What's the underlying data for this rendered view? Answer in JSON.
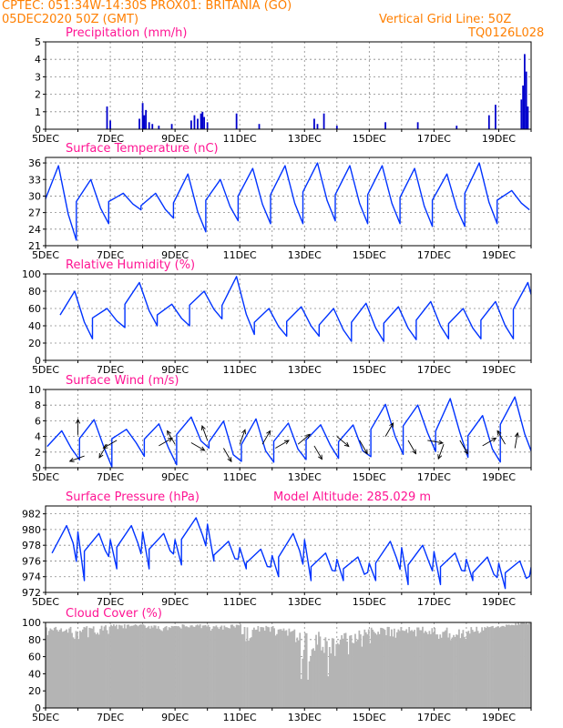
{
  "header": {
    "line1": "CPTEC:   051:34W-14:30S   PROX01: BRITANIA (GO)",
    "line2_left": "05DEC2020 50Z (GMT)",
    "line2_right": "Vertical Grid Line: 50Z",
    "line3_right": "TQ0126L028",
    "color": "#ff7f00"
  },
  "colors": {
    "title": "#ff1493",
    "line": "#0033ff",
    "bar": "#0000cc",
    "cloud": "#b4b4b4",
    "grid": "#888888",
    "axis": "#000000"
  },
  "x_ticks": [
    "5DEC",
    "7DEC",
    "9DEC",
    "11DEC",
    "13DEC",
    "15DEC",
    "17DEC",
    "19DEC"
  ],
  "chart_data": [
    {
      "type": "bar",
      "title": "Precipitation (mm/h)",
      "xlim_days": [
        5,
        20
      ],
      "ylim": [
        0,
        5
      ],
      "yticks": [
        0,
        1,
        2,
        3,
        4,
        5
      ],
      "grid": true,
      "x": [
        6.9,
        7.0,
        7.9,
        8.0,
        8.05,
        8.1,
        8.2,
        8.3,
        8.5,
        8.9,
        9.5,
        9.6,
        9.7,
        9.8,
        9.85,
        9.9,
        10.0,
        10.9,
        11.6,
        13.3,
        13.4,
        13.6,
        14.0,
        15.5,
        16.5,
        17.7,
        18.7,
        18.9,
        19.7,
        19.75,
        19.8,
        19.85,
        19.9
      ],
      "values": [
        1.3,
        0.5,
        0.6,
        1.5,
        0.8,
        1.1,
        0.4,
        0.3,
        0.2,
        0.3,
        0.5,
        0.8,
        0.6,
        0.9,
        1.0,
        0.7,
        0.4,
        0.9,
        0.3,
        0.6,
        0.3,
        0.9,
        0.2,
        0.4,
        0.4,
        0.2,
        0.8,
        1.4,
        1.7,
        2.5,
        4.3,
        3.3,
        1.3
      ]
    },
    {
      "type": "line",
      "title": "Surface Temperature (nC)",
      "xlim_days": [
        5,
        20
      ],
      "ylim": [
        21,
        37
      ],
      "yticks": [
        21,
        24,
        27,
        30,
        33,
        36
      ],
      "grid": true,
      "peaks": [
        35.5,
        33.0,
        30.5,
        30.5,
        34.0,
        33.0,
        35.0,
        35.5,
        36.0,
        35.5,
        35.5,
        35.0,
        34.0,
        36.0,
        31.0
      ],
      "troughs": [
        22.0,
        25.0,
        27.5,
        26.0,
        23.5,
        25.5,
        25.0,
        25.0,
        25.5,
        25.0,
        25.0,
        24.5,
        24.5,
        25.0,
        27.5
      ]
    },
    {
      "type": "line",
      "title": "Relative Humidity (%)",
      "xlim_days": [
        5,
        20
      ],
      "ylim": [
        0,
        100
      ],
      "yticks": [
        0,
        20,
        40,
        60,
        80,
        100
      ],
      "grid": true,
      "peaks": [
        80,
        60,
        90,
        65,
        80,
        97,
        60,
        62,
        60,
        66,
        62,
        68,
        60,
        68,
        90,
        82
      ],
      "troughs": [
        25,
        38,
        40,
        40,
        48,
        30,
        28,
        28,
        22,
        22,
        24,
        25,
        25,
        25,
        28,
        45
      ]
    },
    {
      "type": "line",
      "title": "Surface Wind (m/s)",
      "xlim_days": [
        5,
        20
      ],
      "ylim": [
        0,
        10
      ],
      "yticks": [
        0,
        2,
        4,
        6,
        8,
        10
      ],
      "grid": true,
      "peaks": [
        5.0,
        6.5,
        5.5,
        6.0,
        6.5,
        5.5,
        6.5,
        5.5,
        6.0,
        5.5,
        8.0,
        8.5,
        8.5,
        6.5,
        8.5
      ],
      "troughs": [
        1.0,
        0.5,
        1.5,
        0.5,
        2.0,
        0.5,
        0.5,
        0.5,
        1.0,
        1.0,
        1.5,
        2.0,
        1.5,
        1.0,
        2.0
      ],
      "arrows": [
        [
          6.0,
          90,
          4.2
        ],
        [
          6.2,
          200,
          1.5
        ],
        [
          6.9,
          240,
          3.0
        ],
        [
          7.2,
          210,
          3.5
        ],
        [
          8.5,
          30,
          2.8
        ],
        [
          9.0,
          120,
          3.0
        ],
        [
          9.5,
          330,
          3.2
        ],
        [
          10.0,
          110,
          3.5
        ],
        [
          10.5,
          300,
          2.5
        ],
        [
          11.0,
          70,
          3.0
        ],
        [
          11.7,
          60,
          3.0
        ],
        [
          12.1,
          30,
          2.5
        ],
        [
          12.8,
          40,
          3.0
        ],
        [
          13.3,
          300,
          2.8
        ],
        [
          14.0,
          320,
          4.0
        ],
        [
          14.7,
          300,
          3.5
        ],
        [
          15.5,
          60,
          4.0
        ],
        [
          16.2,
          300,
          3.5
        ],
        [
          16.8,
          350,
          3.5
        ],
        [
          17.3,
          250,
          3.0
        ],
        [
          17.8,
          300,
          3.5
        ],
        [
          18.5,
          30,
          2.8
        ],
        [
          19.2,
          120,
          3.0
        ],
        [
          19.5,
          80,
          2.5
        ]
      ]
    },
    {
      "type": "line",
      "title": "Surface Pressure (hPa)",
      "annotation": "Model Altitude: 285.029 m",
      "xlim_days": [
        5,
        20
      ],
      "ylim": [
        972,
        983
      ],
      "yticks": [
        972,
        974,
        976,
        978,
        980,
        982
      ],
      "grid": true,
      "peaks": [
        980.5,
        979.5,
        980.5,
        979.5,
        981.5,
        978.5,
        977.5,
        979.5,
        977.0,
        976.5,
        978.5,
        978.0,
        977.0,
        976.5,
        976.0
      ],
      "troughs": [
        973.5,
        975.0,
        975.0,
        975.5,
        976.0,
        975.0,
        974.0,
        973.5,
        973.5,
        973.5,
        973.0,
        973.0,
        973.5,
        972.5,
        973.0
      ]
    },
    {
      "type": "area",
      "title": "Cloud Cover (%)",
      "xlim_days": [
        5,
        20
      ],
      "ylim": [
        0,
        100
      ],
      "yticks": [
        0,
        20,
        40,
        60,
        80,
        100
      ],
      "grid": true,
      "segments": [
        [
          5.0,
          82,
          95
        ],
        [
          5.5,
          75,
          95
        ],
        [
          6.0,
          78,
          96
        ],
        [
          6.5,
          80,
          97
        ],
        [
          7.0,
          88,
          98
        ],
        [
          7.5,
          92,
          98
        ],
        [
          8.0,
          90,
          98
        ],
        [
          8.5,
          85,
          96
        ],
        [
          9.0,
          88,
          98
        ],
        [
          9.5,
          90,
          98
        ],
        [
          10.0,
          88,
          97
        ],
        [
          10.5,
          92,
          98
        ],
        [
          11.0,
          75,
          96
        ],
        [
          11.5,
          85,
          96
        ],
        [
          12.0,
          82,
          94
        ],
        [
          12.5,
          60,
          92
        ],
        [
          12.8,
          10,
          90
        ],
        [
          13.0,
          20,
          88
        ],
        [
          13.3,
          45,
          90
        ],
        [
          13.6,
          30,
          88
        ],
        [
          14.0,
          55,
          90
        ],
        [
          14.5,
          65,
          92
        ],
        [
          15.0,
          75,
          94
        ],
        [
          15.5,
          80,
          95
        ],
        [
          16.0,
          82,
          96
        ],
        [
          16.5,
          85,
          96
        ],
        [
          17.0,
          70,
          94
        ],
        [
          17.5,
          72,
          92
        ],
        [
          18.0,
          80,
          95
        ],
        [
          18.5,
          88,
          96
        ],
        [
          19.0,
          92,
          98
        ],
        [
          19.5,
          95,
          100
        ]
      ]
    }
  ]
}
